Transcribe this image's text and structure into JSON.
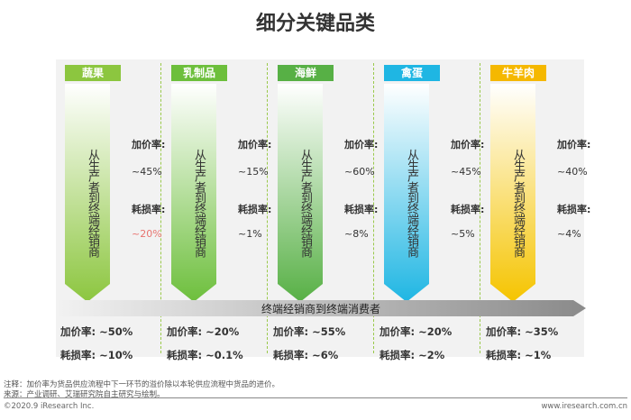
{
  "title": "细分关键品类",
  "columns": [
    {
      "name": "蔬果",
      "color": "#8cc63f",
      "arrow_top": "#8cc63f",
      "vertical_text": "从生产者到终端经销商",
      "markup_label": "加价率:",
      "markup_value": "~45%",
      "loss_label": "耗损率:",
      "loss_value": "~20%",
      "loss_color": "#e8736f",
      "retail_markup": "加价率: ~50%",
      "retail_loss": "耗损率: ~10%"
    },
    {
      "name": "乳制品",
      "color": "#6dbf3c",
      "arrow_top": "#6dbf3c",
      "vertical_text": "从生产者到终端经销商",
      "markup_label": "加价率:",
      "markup_value": "~15%",
      "loss_label": "耗损率:",
      "loss_value": "~1%",
      "loss_color": "#333333",
      "retail_markup": "加价率: ~20%",
      "retail_loss": "耗损率: ~0.1%"
    },
    {
      "name": "海鲜",
      "color": "#57b045",
      "arrow_top": "#57b045",
      "vertical_text": "从生产者到终端经销商",
      "markup_label": "加价率:",
      "markup_value": "~60%",
      "loss_label": "耗损率:",
      "loss_value": "~8%",
      "loss_color": "#333333",
      "retail_markup": "加价率: ~55%",
      "retail_loss": "耗损率: ~6%"
    },
    {
      "name": "禽蛋",
      "color": "#1fb6e3",
      "arrow_top": "#1fb6e3",
      "vertical_text": "从生产者到终端经销商",
      "markup_label": "加价率:",
      "markup_value": "~45%",
      "loss_label": "耗损率:",
      "loss_value": "~5%",
      "loss_color": "#333333",
      "retail_markup": "加价率: ~20%",
      "retail_loss": "耗损率: ~2%"
    },
    {
      "name": "牛羊肉",
      "color": "#f5b800",
      "arrow_top": "#f5c400",
      "vertical_text": "从生产者到终端经销商",
      "markup_label": "加价率:",
      "markup_value": "~40%",
      "loss_label": "耗损率:",
      "loss_value": "~4%",
      "loss_color": "#333333",
      "retail_markup": "加价率: ~35%",
      "retail_loss": "耗损率: ~1%"
    }
  ],
  "band_label": "终端经销商到终端消费者",
  "notes": {
    "line1": "注释：加价率为货品供应流程中下一环节的溢价除以本轮供应流程中货品的进价。",
    "line2": "来源：产业调研、艾瑞研究院自主研究与绘制。"
  },
  "footer": {
    "left": "©2020.9 iResearch Inc.",
    "right": "www.iresearch.com.cn"
  }
}
